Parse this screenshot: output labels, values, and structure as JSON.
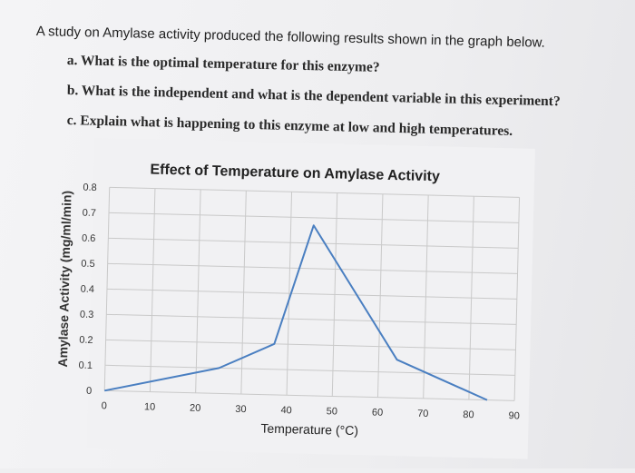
{
  "intro": "A study on Amylase activity produced the following results shown in the graph below.",
  "questions": {
    "a": "a. What is the optimal temperature for this enzyme?",
    "b": "b. What is the independent and what is the dependent variable in this experiment?",
    "c": "c. Explain what is happening to this enzyme at low and high temperatures."
  },
  "colors": {
    "line": "#4a7fc1",
    "grid": "#c9c9c9"
  },
  "chart_data": {
    "type": "line",
    "title": "Effect of Temperature on Amylase Activity",
    "xlabel": "Temperature (°C)",
    "ylabel": "Amylase Activity (mg/ml/min)",
    "x_ticks": [
      "0",
      "10",
      "20",
      "30",
      "40",
      "50",
      "60",
      "70",
      "80",
      "90"
    ],
    "y_ticks": [
      "0",
      "0.1",
      "0.2",
      "0.3",
      "0.4",
      "0.5",
      "0.6",
      "0.7",
      "0.8"
    ],
    "xlim": [
      0,
      90
    ],
    "ylim": [
      0,
      0.8
    ],
    "grid": true,
    "series": [
      {
        "x": [
          0,
          25,
          37,
          45,
          64,
          84
        ],
        "y": [
          0,
          0.1,
          0.2,
          0.67,
          0.15,
          0
        ]
      }
    ]
  }
}
